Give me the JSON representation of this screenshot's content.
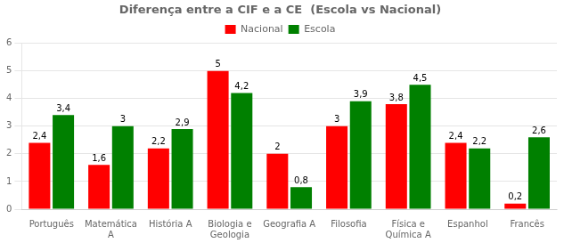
{
  "chart_data": {
    "type": "bar",
    "title": "Diferença entre a CIF e a CE  (Escola vs Nacional)",
    "categories": [
      "Português",
      "Matemática\nA",
      "História A",
      "Biologia e\nGeologia",
      "Geografia A",
      "Filosofia",
      "Física e\nQuímica A",
      "Espanhol",
      "Francês"
    ],
    "series": [
      {
        "name": "Nacional",
        "color": "#ff0000",
        "values": [
          2.4,
          1.6,
          2.2,
          5.0,
          2.0,
          3.0,
          3.8,
          2.4,
          0.2
        ],
        "value_labels": [
          "2,4",
          "1,6",
          "2,2",
          "5",
          "2",
          "3",
          "3,8",
          "2,4",
          "0,2"
        ]
      },
      {
        "name": "Escola",
        "color": "#008000",
        "values": [
          3.4,
          3.0,
          2.9,
          4.2,
          0.8,
          3.9,
          4.5,
          2.2,
          2.6
        ],
        "value_labels": [
          "3,4",
          "3",
          "2,9",
          "4,2",
          "0,8",
          "3,9",
          "4,5",
          "2,2",
          "2,6"
        ]
      }
    ],
    "ylim": [
      0,
      6
    ],
    "yticks": [
      0,
      1,
      2,
      3,
      4,
      5,
      6
    ],
    "grid": true,
    "legend": "top",
    "data_labels": true
  }
}
